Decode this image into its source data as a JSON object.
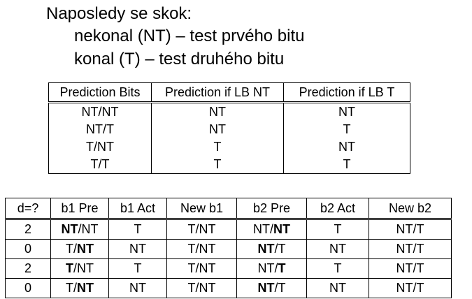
{
  "heading": {
    "line1": "Naposledy se skok:",
    "line2": "nekonal (NT) – test prvého bitu",
    "line3": "konal (T) – test druhého bitu"
  },
  "prediction_table": {
    "headers": [
      "Prediction Bits",
      "Prediction if LB NT",
      "Prediction if LB T"
    ],
    "rows": [
      [
        "NT/NT",
        "NT",
        "NT"
      ],
      [
        "NT/T",
        "NT",
        "T"
      ],
      [
        "T/NT",
        "T",
        "NT"
      ],
      [
        "T/T",
        "T",
        "T"
      ]
    ]
  },
  "trace_table": {
    "headers": [
      "d=?",
      "b1 Pre",
      "b1 Act",
      "New b1",
      "b2 Pre",
      "b2 Act",
      "New b2"
    ],
    "rows": [
      {
        "d": "2",
        "b1_pre": {
          "bold": "NT",
          "sep": "/",
          "rest": "NT"
        },
        "b1_act": "T",
        "new_b1": "T/NT",
        "b2_pre": {
          "pre": "NT/",
          "bold": "NT"
        },
        "b2_act": "T",
        "new_b2": "NT/T"
      },
      {
        "d": "0",
        "b1_pre": {
          "pre": "T/",
          "bold": "NT"
        },
        "b1_act": "NT",
        "new_b1": "T/NT",
        "b2_pre": {
          "bold": "NT",
          "sep": "/",
          "rest": "T"
        },
        "b2_act": "NT",
        "new_b2": "NT/T"
      },
      {
        "d": "2",
        "b1_pre": {
          "bold": "T",
          "sep": "/",
          "rest": "NT"
        },
        "b1_act": "T",
        "new_b1": "T/NT",
        "b2_pre": {
          "pre": "NT/",
          "bold": "T"
        },
        "b2_act": "T",
        "new_b2": "NT/T"
      },
      {
        "d": "0",
        "b1_pre": {
          "pre": "T/",
          "bold": "NT"
        },
        "b1_act": "NT",
        "new_b1": "T/NT",
        "b2_pre": {
          "bold": "NT",
          "sep": "/",
          "rest": "T"
        },
        "b2_act": "NT",
        "new_b2": "NT/T"
      }
    ]
  }
}
